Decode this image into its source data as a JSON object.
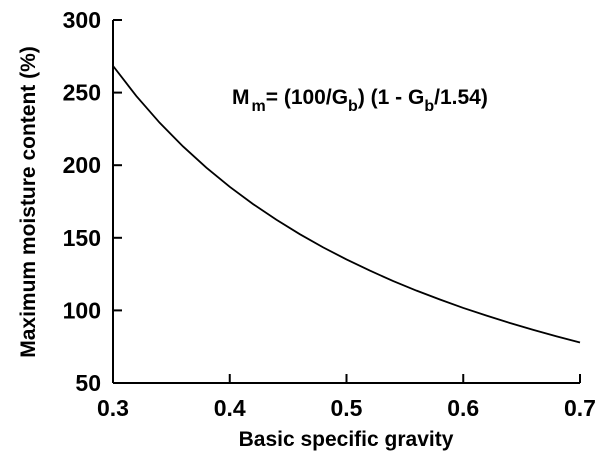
{
  "chart_data": {
    "type": "line",
    "title": "",
    "xlabel": "Basic specific gravity",
    "ylabel": "Maximum moisture content (%)",
    "xlim": [
      0.3,
      0.7
    ],
    "ylim": [
      50,
      300
    ],
    "x_ticks": [
      "0.3",
      "0.4",
      "0.5",
      "0.6",
      "0.7"
    ],
    "y_ticks": [
      "50",
      "100",
      "150",
      "200",
      "250",
      "300"
    ],
    "grid": false,
    "legend": "none",
    "annotation": {
      "M": "M",
      "m_sub": "m",
      "eq_part1": "= (100/G",
      "b_sub1": "b",
      "eq_part2": ") (1 - G",
      "b_sub2": "b",
      "eq_part3": "/1.54)"
    },
    "series": [
      {
        "x": [
          0.3,
          0.32,
          0.34,
          0.36,
          0.38,
          0.4,
          0.42,
          0.44,
          0.46,
          0.48,
          0.5,
          0.52,
          0.54,
          0.56,
          0.58,
          0.6,
          0.62,
          0.64,
          0.66,
          0.68,
          0.7
        ],
        "y": [
          268.4,
          247.6,
          229.2,
          212.9,
          198.3,
          185.1,
          173.2,
          162.4,
          152.5,
          143.4,
          135.1,
          127.4,
          120.2,
          113.6,
          107.5,
          101.7,
          96.4,
          91.3,
          86.6,
          82.1,
          77.9
        ]
      }
    ],
    "colors": {
      "line": "#000000",
      "axis": "#000000",
      "background": "#ffffff"
    }
  }
}
